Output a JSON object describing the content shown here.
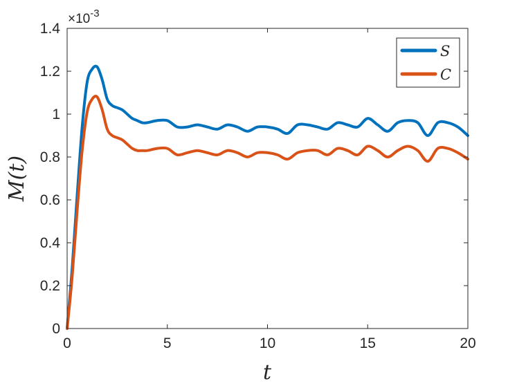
{
  "chart_data": {
    "type": "line",
    "title": "",
    "xlabel": "t",
    "ylabel": "M(t)",
    "xlim": [
      0,
      20
    ],
    "ylim": [
      0,
      0.0014
    ],
    "xticks": [
      "0",
      "5",
      "10",
      "15",
      "20"
    ],
    "yticks": [
      "0",
      "0.2",
      "0.4",
      "0.6",
      "0.8",
      "1",
      "1.2",
      "1.4"
    ],
    "y_exponent_label": "×10",
    "y_exponent_power": "-3",
    "grid": false,
    "legend_position": "top-right",
    "x": [
      0,
      0.25,
      0.5,
      0.75,
      1.0,
      1.25,
      1.5,
      1.75,
      2.0,
      2.25,
      2.5,
      2.75,
      3.0,
      3.25,
      3.5,
      3.75,
      4.0,
      4.5,
      5.0,
      5.5,
      6.0,
      6.5,
      7.0,
      7.5,
      8.0,
      8.5,
      9.0,
      9.5,
      10.0,
      10.5,
      11.0,
      11.5,
      12.0,
      12.5,
      13.0,
      13.5,
      14.0,
      14.5,
      15.0,
      15.5,
      16.0,
      16.5,
      17.0,
      17.5,
      18.0,
      18.5,
      19.0,
      19.5,
      20.0
    ],
    "series": [
      {
        "name": "S",
        "color": "#0072BD",
        "values": [
          0,
          0.00028,
          0.00062,
          0.00094,
          0.00115,
          0.00121,
          0.00122,
          0.00116,
          0.00107,
          0.00104,
          0.00103,
          0.00102,
          0.001,
          0.00098,
          0.00097,
          0.00096,
          0.00096,
          0.00097,
          0.00097,
          0.00094,
          0.00094,
          0.00095,
          0.00094,
          0.00093,
          0.00095,
          0.00094,
          0.00092,
          0.00094,
          0.00094,
          0.00093,
          0.00091,
          0.00095,
          0.00095,
          0.00094,
          0.00093,
          0.00096,
          0.00095,
          0.00094,
          0.00098,
          0.00095,
          0.00092,
          0.00096,
          0.00097,
          0.00096,
          0.0009,
          0.00096,
          0.00096,
          0.00094,
          0.0009
        ]
      },
      {
        "name": "C",
        "color": "#D95319",
        "values": [
          0,
          0.00024,
          0.00055,
          0.00083,
          0.00101,
          0.00107,
          0.00108,
          0.00102,
          0.00093,
          0.0009,
          0.00089,
          0.00088,
          0.00086,
          0.00084,
          0.00083,
          0.00083,
          0.00083,
          0.00084,
          0.00084,
          0.00081,
          0.00082,
          0.00083,
          0.00082,
          0.00081,
          0.00083,
          0.00082,
          0.0008,
          0.00082,
          0.00082,
          0.00081,
          0.00079,
          0.00082,
          0.00083,
          0.00083,
          0.00081,
          0.00084,
          0.00083,
          0.00081,
          0.00085,
          0.00083,
          0.0008,
          0.00083,
          0.00085,
          0.00083,
          0.00078,
          0.00084,
          0.00084,
          0.00082,
          0.00079
        ]
      }
    ]
  }
}
